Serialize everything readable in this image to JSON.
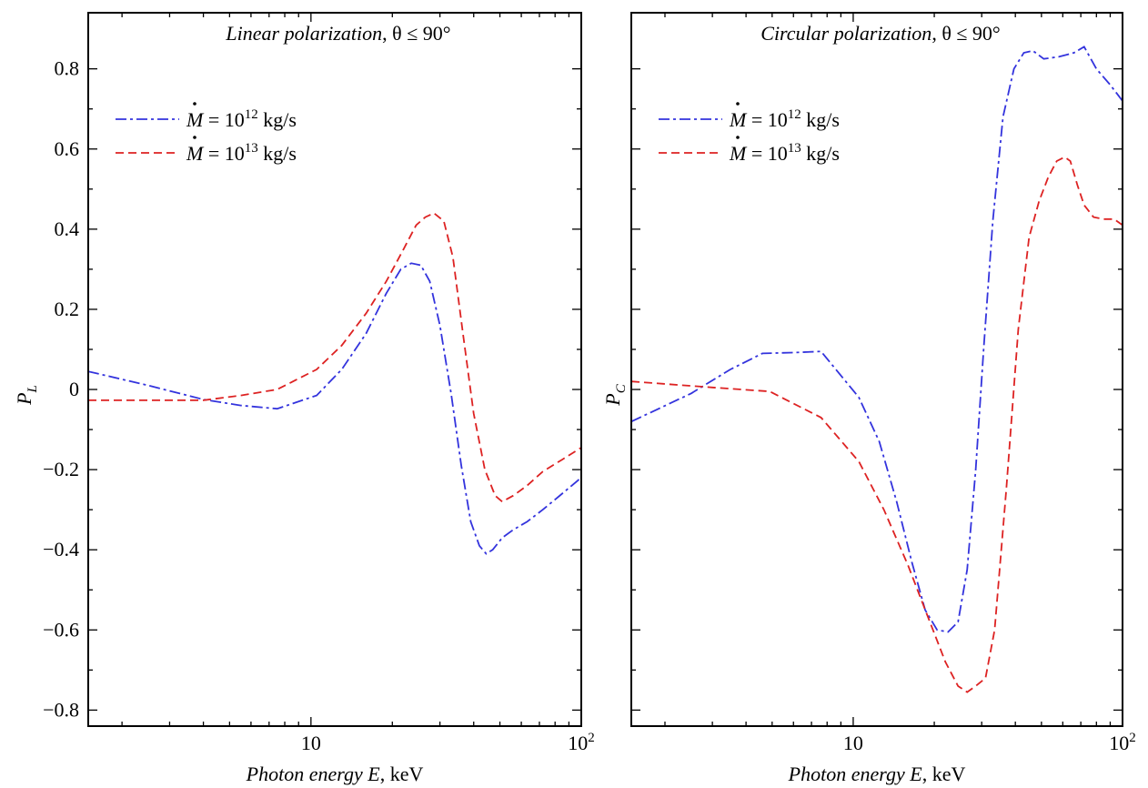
{
  "chart_data": [
    {
      "type": "line",
      "title": "Linear polarization",
      "title_suffix": ", θ ≤ 90°",
      "xlabel_italic": "Photon energy E",
      "xlabel_suffix": ", keV",
      "ylabel": "P",
      "ylabel_sub": "L",
      "x_scale": "log",
      "xlim": [
        1.5,
        100
      ],
      "ylim": [
        -0.84,
        0.94
      ],
      "xticks": [
        {
          "value": 10,
          "label": "10",
          "sup": ""
        },
        {
          "value": 100,
          "label": "10",
          "sup": "2"
        }
      ],
      "yticks": [
        {
          "value": 0.8,
          "label": "0.8"
        },
        {
          "value": 0.6,
          "label": "0.6"
        },
        {
          "value": 0.4,
          "label": "0.4"
        },
        {
          "value": 0.2,
          "label": "0.2"
        },
        {
          "value": 0,
          "label": "0"
        },
        {
          "value": -0.2,
          "label": "−0.2"
        },
        {
          "value": -0.4,
          "label": "−0.4"
        },
        {
          "value": -0.6,
          "label": "−0.6"
        },
        {
          "value": -0.8,
          "label": "−0.8"
        }
      ],
      "legend_position": "top-left",
      "series": [
        {
          "name": "Ṁ = 10¹² kg/s",
          "legend_symbol": "M",
          "legend_eq": " = 10",
          "legend_exp": "12",
          "legend_unit": " kg/s",
          "color": "#3333dd",
          "style": "dashdot",
          "x": [
            1.5,
            2.5,
            4.0,
            5.5,
            7.5,
            10.5,
            13,
            16,
            19,
            21.5,
            23.5,
            25.5,
            27.5,
            30,
            33,
            36,
            39,
            42,
            44.5,
            47,
            51,
            56,
            63,
            72,
            85,
            100
          ],
          "y": [
            0.045,
            0.01,
            -0.025,
            -0.04,
            -0.048,
            -0.015,
            0.05,
            0.14,
            0.24,
            0.3,
            0.315,
            0.31,
            0.27,
            0.16,
            -0.01,
            -0.19,
            -0.33,
            -0.39,
            -0.41,
            -0.4,
            -0.37,
            -0.35,
            -0.33,
            -0.3,
            -0.26,
            -0.22
          ]
        },
        {
          "name": "Ṁ = 10¹³ kg/s",
          "legend_symbol": "M",
          "legend_eq": " = 10",
          "legend_exp": "13",
          "legend_unit": " kg/s",
          "color": "#dd2222",
          "style": "dashed",
          "x": [
            1.5,
            2.5,
            4.0,
            5.5,
            7.5,
            10.5,
            13,
            16,
            19,
            22,
            24.5,
            26.5,
            28.5,
            31,
            33.5,
            36.5,
            40,
            44,
            48,
            51,
            56,
            63,
            72,
            85,
            100
          ],
          "y": [
            -0.027,
            -0.027,
            -0.027,
            -0.015,
            0.0,
            0.05,
            0.11,
            0.19,
            0.27,
            0.35,
            0.41,
            0.43,
            0.44,
            0.42,
            0.33,
            0.14,
            -0.06,
            -0.2,
            -0.265,
            -0.28,
            -0.265,
            -0.24,
            -0.205,
            -0.175,
            -0.145
          ]
        }
      ]
    },
    {
      "type": "line",
      "title": "Circular polarization",
      "title_suffix": ", θ ≤ 90°",
      "xlabel_italic": "Photon energy E",
      "xlabel_suffix": ", keV",
      "ylabel": "P",
      "ylabel_sub": "C",
      "x_scale": "log",
      "xlim": [
        1.5,
        100
      ],
      "ylim": [
        -0.84,
        0.94
      ],
      "xticks": [
        {
          "value": 10,
          "label": "10",
          "sup": ""
        },
        {
          "value": 100,
          "label": "10",
          "sup": "2"
        }
      ],
      "yticks": [
        {
          "value": 0.8,
          "label": ""
        },
        {
          "value": 0.6,
          "label": ""
        },
        {
          "value": 0.4,
          "label": ""
        },
        {
          "value": 0.2,
          "label": ""
        },
        {
          "value": 0,
          "label": ""
        },
        {
          "value": -0.2,
          "label": ""
        },
        {
          "value": -0.4,
          "label": ""
        },
        {
          "value": -0.6,
          "label": ""
        },
        {
          "value": -0.8,
          "label": ""
        }
      ],
      "legend_position": "top-left",
      "series": [
        {
          "name": "Ṁ = 10¹² kg/s",
          "legend_symbol": "M",
          "legend_eq": " = 10",
          "legend_exp": "12",
          "legend_unit": " kg/s",
          "color": "#3333dd",
          "style": "dashdot",
          "x": [
            1.5,
            2.5,
            3.5,
            4.6,
            6.0,
            7.6,
            10.5,
            12.5,
            14.5,
            16.5,
            18.5,
            20.5,
            22.5,
            24.5,
            26.5,
            28.5,
            30.5,
            33,
            36,
            39.5,
            43,
            46.5,
            51,
            58,
            66,
            72,
            80,
            90,
            100
          ],
          "y": [
            -0.08,
            -0.01,
            0.05,
            0.09,
            0.092,
            0.095,
            -0.02,
            -0.13,
            -0.28,
            -0.43,
            -0.55,
            -0.6,
            -0.605,
            -0.58,
            -0.45,
            -0.2,
            0.1,
            0.42,
            0.68,
            0.8,
            0.84,
            0.845,
            0.825,
            0.83,
            0.84,
            0.855,
            0.8,
            0.76,
            0.72
          ]
        },
        {
          "name": "Ṁ = 10¹³ kg/s",
          "legend_symbol": "M",
          "legend_eq": " = 10",
          "legend_exp": "13",
          "legend_unit": " kg/s",
          "color": "#dd2222",
          "style": "dashed",
          "x": [
            1.5,
            3.0,
            4.9,
            7.6,
            10.5,
            13,
            16,
            19,
            22,
            24.5,
            26.5,
            28.5,
            31,
            33.5,
            37,
            41,
            45,
            49,
            53,
            57,
            61,
            64,
            68,
            72,
            78,
            85,
            93,
            100
          ],
          "y": [
            0.02,
            0.005,
            -0.005,
            -0.07,
            -0.18,
            -0.3,
            -0.44,
            -0.57,
            -0.68,
            -0.74,
            -0.755,
            -0.74,
            -0.72,
            -0.6,
            -0.25,
            0.15,
            0.38,
            0.47,
            0.53,
            0.57,
            0.58,
            0.57,
            0.51,
            0.46,
            0.43,
            0.425,
            0.425,
            0.41
          ]
        }
      ]
    }
  ]
}
